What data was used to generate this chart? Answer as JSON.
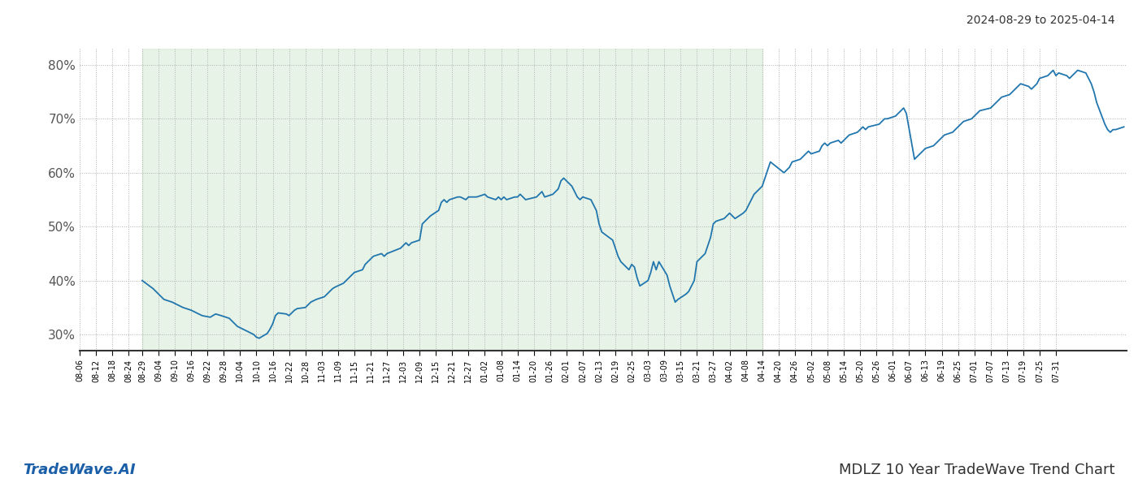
{
  "title_top_right": "2024-08-29 to 2025-04-14",
  "title_bottom_left": "TradeWave.AI",
  "title_bottom_right": "MDLZ 10 Year TradeWave Trend Chart",
  "line_color": "#2176ae",
  "shading_color": "#c8e6c9",
  "shading_alpha": 0.45,
  "background_color": "#ffffff",
  "grid_color": "#b0b0b0",
  "ylim": [
    27,
    83
  ],
  "yticks": [
    30,
    40,
    50,
    60,
    70,
    80
  ],
  "shade_start": "2024-08-29",
  "shade_end": "2025-04-14",
  "x_start": "2024-08-29",
  "x_end": "2025-08-26",
  "data_points": [
    [
      "2024-08-29",
      40.0
    ],
    [
      "2024-09-02",
      38.5
    ],
    [
      "2024-09-04",
      37.5
    ],
    [
      "2024-09-06",
      36.5
    ],
    [
      "2024-09-09",
      36.0
    ],
    [
      "2024-09-11",
      35.5
    ],
    [
      "2024-09-13",
      35.0
    ],
    [
      "2024-09-16",
      34.5
    ],
    [
      "2024-09-18",
      34.0
    ],
    [
      "2024-09-20",
      33.5
    ],
    [
      "2024-09-23",
      33.2
    ],
    [
      "2024-09-25",
      33.8
    ],
    [
      "2024-09-27",
      33.5
    ],
    [
      "2024-09-30",
      33.0
    ],
    [
      "2024-10-01",
      32.5
    ],
    [
      "2024-10-03",
      31.5
    ],
    [
      "2024-10-07",
      30.5
    ],
    [
      "2024-10-09",
      30.0
    ],
    [
      "2024-10-10",
      29.5
    ],
    [
      "2024-10-11",
      29.3
    ],
    [
      "2024-10-14",
      30.2
    ],
    [
      "2024-10-15",
      31.0
    ],
    [
      "2024-10-16",
      32.0
    ],
    [
      "2024-10-17",
      33.5
    ],
    [
      "2024-10-18",
      34.0
    ],
    [
      "2024-10-21",
      33.8
    ],
    [
      "2024-10-22",
      33.5
    ],
    [
      "2024-10-23",
      34.0
    ],
    [
      "2024-10-24",
      34.5
    ],
    [
      "2024-10-25",
      34.8
    ],
    [
      "2024-10-28",
      35.0
    ],
    [
      "2024-10-29",
      35.5
    ],
    [
      "2024-10-30",
      36.0
    ],
    [
      "2024-11-01",
      36.5
    ],
    [
      "2024-11-04",
      37.0
    ],
    [
      "2024-11-05",
      37.5
    ],
    [
      "2024-11-06",
      38.0
    ],
    [
      "2024-11-07",
      38.5
    ],
    [
      "2024-11-08",
      38.8
    ],
    [
      "2024-11-11",
      39.5
    ],
    [
      "2024-11-12",
      40.0
    ],
    [
      "2024-11-13",
      40.5
    ],
    [
      "2024-11-14",
      41.0
    ],
    [
      "2024-11-15",
      41.5
    ],
    [
      "2024-11-18",
      42.0
    ],
    [
      "2024-11-19",
      43.0
    ],
    [
      "2024-11-20",
      43.5
    ],
    [
      "2024-11-21",
      44.0
    ],
    [
      "2024-11-22",
      44.5
    ],
    [
      "2024-11-25",
      45.0
    ],
    [
      "2024-11-26",
      44.5
    ],
    [
      "2024-11-27",
      45.0
    ],
    [
      "2024-12-02",
      46.0
    ],
    [
      "2024-12-03",
      46.5
    ],
    [
      "2024-12-04",
      47.0
    ],
    [
      "2024-12-05",
      46.5
    ],
    [
      "2024-12-06",
      47.0
    ],
    [
      "2024-12-09",
      47.5
    ],
    [
      "2024-12-10",
      50.5
    ],
    [
      "2024-12-11",
      51.0
    ],
    [
      "2024-12-12",
      51.5
    ],
    [
      "2024-12-13",
      52.0
    ],
    [
      "2024-12-16",
      53.0
    ],
    [
      "2024-12-17",
      54.5
    ],
    [
      "2024-12-18",
      55.0
    ],
    [
      "2024-12-19",
      54.5
    ],
    [
      "2024-12-20",
      55.0
    ],
    [
      "2024-12-23",
      55.5
    ],
    [
      "2024-12-24",
      55.5
    ],
    [
      "2024-12-26",
      55.0
    ],
    [
      "2024-12-27",
      55.5
    ],
    [
      "2024-12-30",
      55.5
    ],
    [
      "2025-01-02",
      56.0
    ],
    [
      "2025-01-03",
      55.5
    ],
    [
      "2025-01-06",
      55.0
    ],
    [
      "2025-01-07",
      55.5
    ],
    [
      "2025-01-08",
      55.0
    ],
    [
      "2025-01-09",
      55.5
    ],
    [
      "2025-01-10",
      55.0
    ],
    [
      "2025-01-13",
      55.5
    ],
    [
      "2025-01-14",
      55.5
    ],
    [
      "2025-01-15",
      56.0
    ],
    [
      "2025-01-16",
      55.5
    ],
    [
      "2025-01-17",
      55.0
    ],
    [
      "2025-01-21",
      55.5
    ],
    [
      "2025-01-22",
      56.0
    ],
    [
      "2025-01-23",
      56.5
    ],
    [
      "2025-01-24",
      55.5
    ],
    [
      "2025-01-27",
      56.0
    ],
    [
      "2025-01-28",
      56.5
    ],
    [
      "2025-01-29",
      57.0
    ],
    [
      "2025-01-30",
      58.5
    ],
    [
      "2025-01-31",
      59.0
    ],
    [
      "2025-02-03",
      57.5
    ],
    [
      "2025-02-04",
      56.5
    ],
    [
      "2025-02-05",
      55.5
    ],
    [
      "2025-02-06",
      55.0
    ],
    [
      "2025-02-07",
      55.5
    ],
    [
      "2025-02-10",
      55.0
    ],
    [
      "2025-02-11",
      54.0
    ],
    [
      "2025-02-12",
      53.0
    ],
    [
      "2025-02-13",
      50.5
    ],
    [
      "2025-02-14",
      49.0
    ],
    [
      "2025-02-18",
      47.5
    ],
    [
      "2025-02-19",
      46.0
    ],
    [
      "2025-02-20",
      44.5
    ],
    [
      "2025-02-21",
      43.5
    ],
    [
      "2025-02-24",
      42.0
    ],
    [
      "2025-02-25",
      43.0
    ],
    [
      "2025-02-26",
      42.5
    ],
    [
      "2025-02-27",
      40.5
    ],
    [
      "2025-02-28",
      39.0
    ],
    [
      "2025-03-03",
      40.0
    ],
    [
      "2025-03-04",
      41.5
    ],
    [
      "2025-03-05",
      43.5
    ],
    [
      "2025-03-06",
      42.0
    ],
    [
      "2025-03-07",
      43.5
    ],
    [
      "2025-03-10",
      41.0
    ],
    [
      "2025-03-11",
      39.0
    ],
    [
      "2025-03-12",
      37.5
    ],
    [
      "2025-03-13",
      36.0
    ],
    [
      "2025-03-14",
      36.5
    ],
    [
      "2025-03-17",
      37.5
    ],
    [
      "2025-03-18",
      38.0
    ],
    [
      "2025-03-19",
      39.0
    ],
    [
      "2025-03-20",
      40.0
    ],
    [
      "2025-03-21",
      43.5
    ],
    [
      "2025-03-24",
      45.0
    ],
    [
      "2025-03-25",
      46.5
    ],
    [
      "2025-03-26",
      48.0
    ],
    [
      "2025-03-27",
      50.5
    ],
    [
      "2025-03-28",
      51.0
    ],
    [
      "2025-03-31",
      51.5
    ],
    [
      "2025-04-01",
      52.0
    ],
    [
      "2025-04-02",
      52.5
    ],
    [
      "2025-04-03",
      52.0
    ],
    [
      "2025-04-04",
      51.5
    ],
    [
      "2025-04-07",
      52.5
    ],
    [
      "2025-04-08",
      53.0
    ],
    [
      "2025-04-09",
      54.0
    ],
    [
      "2025-04-10",
      55.0
    ],
    [
      "2025-04-11",
      56.0
    ],
    [
      "2025-04-14",
      57.5
    ],
    [
      "2025-04-15",
      59.0
    ],
    [
      "2025-04-16",
      60.5
    ],
    [
      "2025-04-17",
      62.0
    ],
    [
      "2025-04-22",
      60.0
    ],
    [
      "2025-04-23",
      60.5
    ],
    [
      "2025-04-24",
      61.0
    ],
    [
      "2025-04-25",
      62.0
    ],
    [
      "2025-04-28",
      62.5
    ],
    [
      "2025-04-29",
      63.0
    ],
    [
      "2025-04-30",
      63.5
    ],
    [
      "2025-05-01",
      64.0
    ],
    [
      "2025-05-02",
      63.5
    ],
    [
      "2025-05-05",
      64.0
    ],
    [
      "2025-05-06",
      65.0
    ],
    [
      "2025-05-07",
      65.5
    ],
    [
      "2025-05-08",
      65.0
    ],
    [
      "2025-05-09",
      65.5
    ],
    [
      "2025-05-12",
      66.0
    ],
    [
      "2025-05-13",
      65.5
    ],
    [
      "2025-05-14",
      66.0
    ],
    [
      "2025-05-15",
      66.5
    ],
    [
      "2025-05-16",
      67.0
    ],
    [
      "2025-05-19",
      67.5
    ],
    [
      "2025-05-20",
      68.0
    ],
    [
      "2025-05-21",
      68.5
    ],
    [
      "2025-05-22",
      68.0
    ],
    [
      "2025-05-23",
      68.5
    ],
    [
      "2025-05-27",
      69.0
    ],
    [
      "2025-05-28",
      69.5
    ],
    [
      "2025-05-29",
      70.0
    ],
    [
      "2025-05-30",
      70.0
    ],
    [
      "2025-06-02",
      70.5
    ],
    [
      "2025-06-03",
      71.0
    ],
    [
      "2025-06-04",
      71.5
    ],
    [
      "2025-06-05",
      72.0
    ],
    [
      "2025-06-06",
      71.0
    ],
    [
      "2025-06-09",
      62.5
    ],
    [
      "2025-06-10",
      63.0
    ],
    [
      "2025-06-11",
      63.5
    ],
    [
      "2025-06-12",
      64.0
    ],
    [
      "2025-06-13",
      64.5
    ],
    [
      "2025-06-16",
      65.0
    ],
    [
      "2025-06-17",
      65.5
    ],
    [
      "2025-06-18",
      66.0
    ],
    [
      "2025-06-19",
      66.5
    ],
    [
      "2025-06-20",
      67.0
    ],
    [
      "2025-06-23",
      67.5
    ],
    [
      "2025-06-24",
      68.0
    ],
    [
      "2025-06-25",
      68.5
    ],
    [
      "2025-06-26",
      69.0
    ],
    [
      "2025-06-27",
      69.5
    ],
    [
      "2025-06-30",
      70.0
    ],
    [
      "2025-07-01",
      70.5
    ],
    [
      "2025-07-02",
      71.0
    ],
    [
      "2025-07-03",
      71.5
    ],
    [
      "2025-07-07",
      72.0
    ],
    [
      "2025-07-08",
      72.5
    ],
    [
      "2025-07-09",
      73.0
    ],
    [
      "2025-07-10",
      73.5
    ],
    [
      "2025-07-11",
      74.0
    ],
    [
      "2025-07-14",
      74.5
    ],
    [
      "2025-07-15",
      75.0
    ],
    [
      "2025-07-16",
      75.5
    ],
    [
      "2025-07-17",
      76.0
    ],
    [
      "2025-07-18",
      76.5
    ],
    [
      "2025-07-21",
      76.0
    ],
    [
      "2025-07-22",
      75.5
    ],
    [
      "2025-07-23",
      76.0
    ],
    [
      "2025-07-24",
      76.5
    ],
    [
      "2025-07-25",
      77.5
    ],
    [
      "2025-07-28",
      78.0
    ],
    [
      "2025-07-29",
      78.5
    ],
    [
      "2025-07-30",
      79.0
    ],
    [
      "2025-07-31",
      78.0
    ],
    [
      "2025-08-01",
      78.5
    ],
    [
      "2025-08-04",
      78.0
    ],
    [
      "2025-08-05",
      77.5
    ],
    [
      "2025-08-06",
      78.0
    ],
    [
      "2025-08-07",
      78.5
    ],
    [
      "2025-08-08",
      79.0
    ],
    [
      "2025-08-11",
      78.5
    ],
    [
      "2025-08-12",
      77.5
    ],
    [
      "2025-08-13",
      76.5
    ],
    [
      "2025-08-14",
      75.0
    ],
    [
      "2025-08-15",
      73.0
    ],
    [
      "2025-08-18",
      69.0
    ],
    [
      "2025-08-19",
      68.0
    ],
    [
      "2025-08-20",
      67.5
    ],
    [
      "2025-08-21",
      68.0
    ],
    [
      "2025-08-22",
      68.0
    ],
    [
      "2025-08-25",
      68.5
    ]
  ],
  "xtick_labels": [
    "08-29",
    "09-04",
    "09-10",
    "09-16",
    "09-22",
    "09-28",
    "10-04",
    "10-10",
    "10-16",
    "10-22",
    "10-28",
    "11-03",
    "11-09",
    "11-15",
    "11-21",
    "11-27",
    "12-03",
    "12-09",
    "12-15",
    "12-21",
    "12-27",
    "01-02",
    "01-08",
    "01-14",
    "01-20",
    "01-26",
    "02-01",
    "02-07",
    "02-13",
    "02-19",
    "02-25",
    "03-03",
    "03-09",
    "03-15",
    "03-21",
    "03-27",
    "04-02",
    "04-08",
    "04-14",
    "04-20",
    "04-26",
    "05-02",
    "05-08",
    "05-14",
    "05-20",
    "05-26",
    "06-01",
    "06-07",
    "06-13",
    "06-19",
    "06-25",
    "07-01",
    "07-07",
    "07-13",
    "07-19",
    "07-25",
    "07-31",
    "08-06",
    "08-12",
    "08-18",
    "08-24"
  ]
}
